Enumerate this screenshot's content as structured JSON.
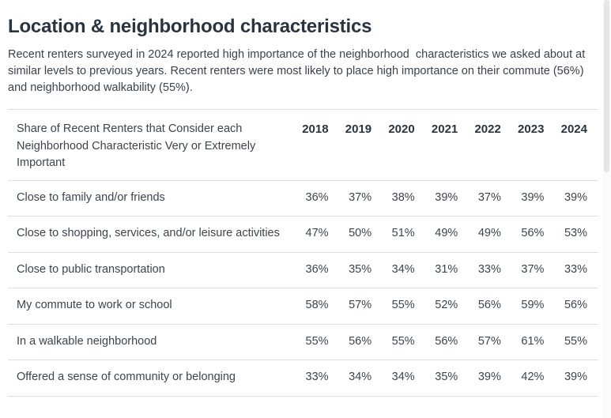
{
  "page": {
    "title": "Location & neighborhood characteristics",
    "intro": "Recent renters surveyed in 2024 reported high importance of the neighborhood  characteristics we asked about at similar levels to previous years. Recent renters were most likely to place high importance on their commute (56%) and neighborhood walkability (55%)."
  },
  "table": {
    "header_label": "Share of Recent Renters that Consider each Neighborhood Characteristic Very or Extremely Important",
    "years": [
      "2018",
      "2019",
      "2020",
      "2021",
      "2022",
      "2023",
      "2024"
    ],
    "rows": [
      {
        "label": "Close to family and/or friends",
        "values": [
          "36%",
          "37%",
          "38%",
          "39%",
          "37%",
          "39%",
          "39%"
        ]
      },
      {
        "label": "Close to shopping, services, and/or leisure activities",
        "values": [
          "47%",
          "50%",
          "51%",
          "49%",
          "49%",
          "56%",
          "53%"
        ]
      },
      {
        "label": "Close to public transportation",
        "values": [
          "36%",
          "35%",
          "34%",
          "31%",
          "33%",
          "37%",
          "33%"
        ]
      },
      {
        "label": "My commute to work or school",
        "values": [
          "58%",
          "57%",
          "55%",
          "52%",
          "56%",
          "59%",
          "56%"
        ]
      },
      {
        "label": "In a walkable neighborhood",
        "values": [
          "55%",
          "56%",
          "55%",
          "56%",
          "57%",
          "61%",
          "55%"
        ]
      },
      {
        "label": "Offered a sense of community or belonging",
        "values": [
          "33%",
          "34%",
          "34%",
          "35%",
          "39%",
          "42%",
          "39%"
        ]
      }
    ]
  },
  "colors": {
    "heading": "#2a333e",
    "body_text": "#3a424b",
    "table_text": "#3d444c",
    "divider": "#dcdfe2",
    "scrollbar_thumb": "#e4e6e8",
    "background": "#ffffff"
  },
  "chart_data": {
    "type": "table",
    "title": "Share of Recent Renters that Consider each Neighborhood Characteristic Very or Extremely Important",
    "categories": [
      "2018",
      "2019",
      "2020",
      "2021",
      "2022",
      "2023",
      "2024"
    ],
    "series": [
      {
        "name": "Close to family and/or friends",
        "values": [
          36,
          37,
          38,
          39,
          37,
          39,
          39
        ]
      },
      {
        "name": "Close to shopping, services, and/or leisure activities",
        "values": [
          47,
          50,
          51,
          49,
          49,
          56,
          53
        ]
      },
      {
        "name": "Close to public transportation",
        "values": [
          36,
          35,
          34,
          31,
          33,
          37,
          33
        ]
      },
      {
        "name": "My commute to work or school",
        "values": [
          58,
          57,
          55,
          52,
          56,
          59,
          56
        ]
      },
      {
        "name": "In a walkable neighborhood",
        "values": [
          55,
          56,
          55,
          56,
          57,
          61,
          55
        ]
      },
      {
        "name": "Offered a sense of community or belonging",
        "values": [
          33,
          34,
          34,
          35,
          39,
          42,
          39
        ]
      }
    ],
    "unit": "%"
  }
}
